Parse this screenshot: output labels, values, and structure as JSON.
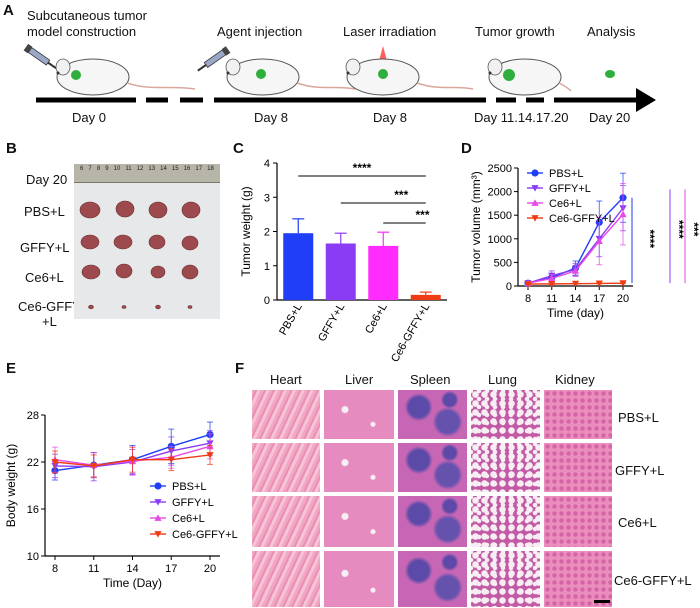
{
  "panel_letters": {
    "a": "A",
    "b": "B",
    "c": "C",
    "d": "D",
    "e": "E",
    "f": "F"
  },
  "timeline": {
    "steps": [
      "Subcutaneous tumor\nmodel construction",
      "Agent injection",
      "Laser irradiation",
      "Tumor growth",
      "Analysis"
    ],
    "days": [
      "Day 0",
      "Day 8",
      "Day 8",
      "Day 11.14.17.20",
      "Day 20"
    ]
  },
  "photo": {
    "title": "Day 20",
    "row_labels": [
      "PBS+L",
      "GFFY+L",
      "Ce6+L",
      "Ce6-GFFY\n+L"
    ],
    "ruler_numbers": [
      "6",
      "7",
      "8",
      "9",
      "10",
      "11",
      "12",
      "13",
      "14",
      "15",
      "16",
      "17",
      "18"
    ]
  },
  "colors": {
    "blue": "#1f3ef5",
    "purple": "#8a3cf5",
    "magenta": "#e64ae6",
    "red": "#f03c14",
    "pink_bar": "#ff2bff"
  },
  "chart_data": [
    {
      "type": "bar",
      "categories": [
        "PBS+L",
        "GFFY+L",
        "Ce6+L",
        "Ce6-GFFY+L"
      ],
      "values": [
        1.95,
        1.65,
        1.58,
        0.15
      ],
      "errors": [
        0.42,
        0.3,
        0.4,
        0.08
      ],
      "ylabel": "Tumor weight (g)",
      "yticks": [
        "0",
        "1",
        "2",
        "3",
        "4"
      ],
      "ylim": [
        0,
        4
      ],
      "significance": [
        "****",
        "***",
        "***"
      ]
    },
    {
      "type": "line",
      "x": [
        8,
        11,
        14,
        17,
        20
      ],
      "xticks": [
        "8",
        "11",
        "14",
        "17",
        "20"
      ],
      "yticks": [
        "0",
        "500",
        "1000",
        "1500",
        "2000",
        "2500"
      ],
      "ylim": [
        0,
        2500
      ],
      "xlabel": "Time (day)",
      "ylabel": "Tumor  volume (mm³)",
      "series": [
        {
          "name": "PBS+L",
          "values": [
            60,
            180,
            380,
            1350,
            1870
          ],
          "errors": [
            20,
            90,
            150,
            450,
            520
          ]
        },
        {
          "name": "GFFY+L",
          "values": [
            60,
            220,
            350,
            1000,
            1650
          ],
          "errors": [
            20,
            100,
            130,
            380,
            480
          ]
        },
        {
          "name": "Ce6+L",
          "values": [
            60,
            160,
            320,
            950,
            1520
          ],
          "errors": [
            20,
            80,
            120,
            500,
            650
          ]
        },
        {
          "name": "Ce6-GFFY+L",
          "values": [
            40,
            45,
            50,
            55,
            60
          ],
          "errors": [
            10,
            10,
            10,
            10,
            10
          ]
        }
      ],
      "significance": [
        "****",
        "****",
        "***"
      ]
    },
    {
      "type": "line",
      "x": [
        8,
        11,
        14,
        17,
        20
      ],
      "xticks": [
        "8",
        "11",
        "14",
        "17",
        "20"
      ],
      "yticks": [
        "10",
        "16",
        "22",
        "28"
      ],
      "ylim": [
        10,
        28
      ],
      "xlabel": "Time (Day)",
      "ylabel": "Body weight (g)",
      "series": [
        {
          "name": "PBS+L",
          "values": [
            20.9,
            21.6,
            22.3,
            24.0,
            25.5
          ],
          "errors": [
            1.2,
            1.6,
            1.8,
            2.2,
            1.6
          ]
        },
        {
          "name": "GFFY+L",
          "values": [
            21.5,
            21.4,
            22.0,
            23.4,
            24.4
          ],
          "errors": [
            1.5,
            1.8,
            1.6,
            1.8,
            1.6
          ]
        },
        {
          "name": "Ce6+L",
          "values": [
            22.3,
            21.6,
            22.1,
            22.6,
            24.0
          ],
          "errors": [
            1.6,
            1.6,
            1.8,
            1.4,
            1.6
          ]
        },
        {
          "name": "Ce6-GFFY+L",
          "values": [
            22.0,
            21.5,
            22.3,
            22.3,
            22.9
          ],
          "errors": [
            1.4,
            1.4,
            1.6,
            1.4,
            1.2
          ]
        }
      ]
    }
  ],
  "histology": {
    "columns": [
      "Heart",
      "Liver",
      "Spleen",
      "Lung",
      "Kidney"
    ],
    "rows": [
      "PBS+L",
      "GFFY+L",
      "Ce6+L",
      "Ce6-GFFY+L"
    ]
  }
}
